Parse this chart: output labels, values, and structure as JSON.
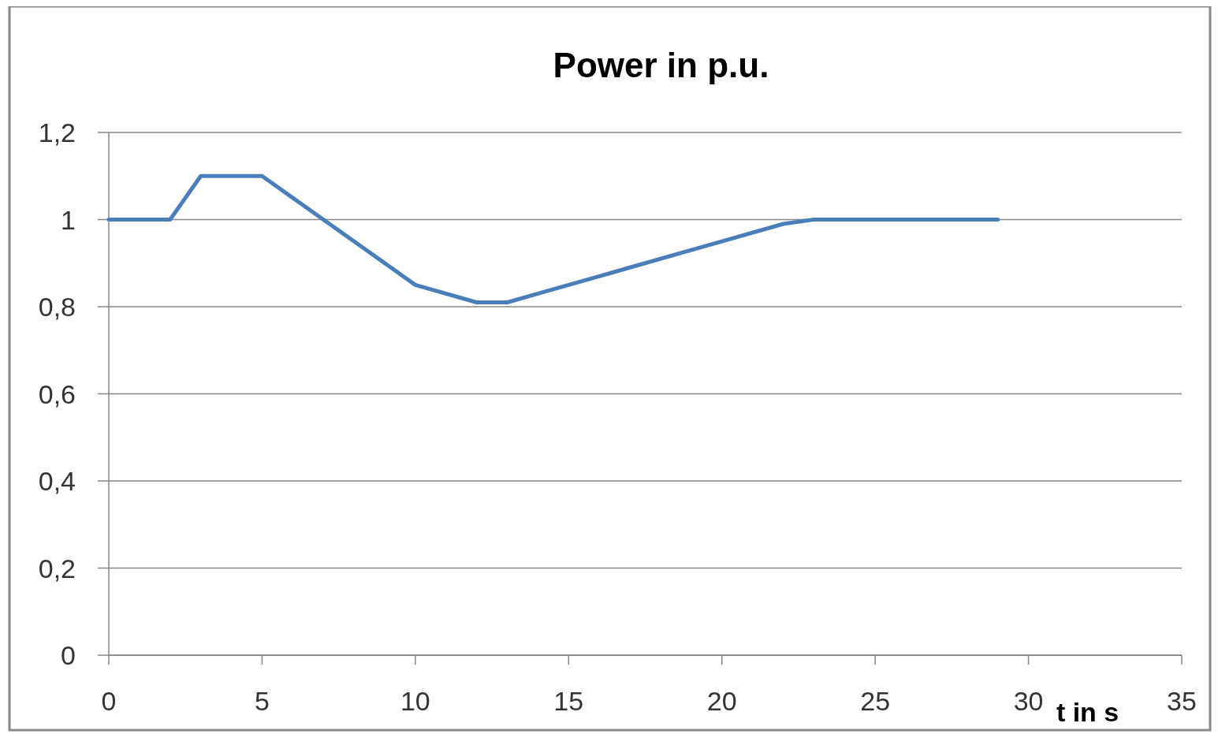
{
  "chart_data": {
    "type": "line",
    "title": "Power in p.u.",
    "xlabel": "t in s",
    "series": [
      {
        "color": "#4a7ebb",
        "x": [
          0,
          2,
          3,
          5,
          6,
          7,
          10,
          12,
          13,
          14,
          16,
          17,
          19,
          20,
          22,
          23,
          29
        ],
        "values": [
          1,
          1,
          1.1,
          1.1,
          1.05,
          1,
          0.85,
          0.81,
          0.81,
          0.83,
          0.87,
          0.89,
          0.93,
          0.95,
          0.99,
          1,
          1
        ]
      }
    ],
    "xlim": [
      0,
      35
    ],
    "xticks": [
      0,
      5,
      10,
      15,
      20,
      25,
      30,
      35
    ],
    "ylim": [
      0,
      1.2
    ],
    "yticks": [
      {
        "value": 0,
        "label": "0"
      },
      {
        "value": 0.2,
        "label": "0,2"
      },
      {
        "value": 0.4,
        "label": "0,4"
      },
      {
        "value": 0.6,
        "label": "0,6"
      },
      {
        "value": 0.8,
        "label": "0,8"
      },
      {
        "value": 1,
        "label": "1"
      },
      {
        "value": 1.2,
        "label": "1,2"
      }
    ],
    "grid": "y",
    "marker": "none",
    "line_style": "solid"
  }
}
